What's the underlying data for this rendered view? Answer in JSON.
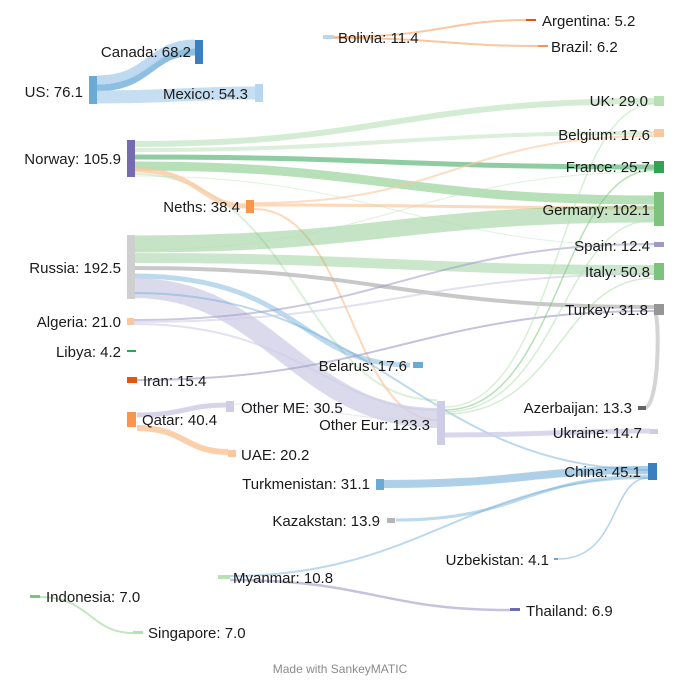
{
  "credit": "Made with SankeyMATIC",
  "colors": {
    "blue_dark": "#3a80c0",
    "blue": "#6aaad6",
    "blue_light": "#b8d6ee",
    "green_dark": "#31a354",
    "green": "#7cc47e",
    "green_light": "#b8e0b5",
    "orange_dark": "#e6550d",
    "orange": "#f9964b",
    "orange_light": "#fcc79c",
    "purple_dark": "#6f6ab5",
    "purple": "#9e9ac8",
    "purple_light": "#cfcde6",
    "gray_dark": "#636363",
    "gray": "#969696",
    "gray_light": "#cfcfcf"
  },
  "nodes": [
    {
      "id": "canada",
      "name": "Canada",
      "value": "68.2",
      "label": "Canada: 68.2"
    },
    {
      "id": "us",
      "name": "US",
      "value": "76.1",
      "label": "US: 76.1"
    },
    {
      "id": "mexico",
      "name": "Mexico",
      "value": "54.3",
      "label": "Mexico: 54.3"
    },
    {
      "id": "bolivia",
      "name": "Bolivia",
      "value": "11.4",
      "label": "Bolivia: 11.4"
    },
    {
      "id": "argentina",
      "name": "Argentina",
      "value": "5.2",
      "label": "Argentina: 5.2"
    },
    {
      "id": "brazil",
      "name": "Brazil",
      "value": "6.2",
      "label": "Brazil: 6.2"
    },
    {
      "id": "norway",
      "name": "Norway",
      "value": "105.9",
      "label": "Norway: 105.9"
    },
    {
      "id": "neths",
      "name": "Neths",
      "value": "38.4",
      "label": "Neths: 38.4"
    },
    {
      "id": "russia",
      "name": "Russia",
      "value": "192.5",
      "label": "Russia: 192.5"
    },
    {
      "id": "algeria",
      "name": "Algeria",
      "value": "21.0",
      "label": "Algeria: 21.0"
    },
    {
      "id": "libya",
      "name": "Libya",
      "value": "4.2",
      "label": "Libya: 4.2"
    },
    {
      "id": "iran",
      "name": "Iran",
      "value": "15.4",
      "label": "Iran: 15.4"
    },
    {
      "id": "qatar",
      "name": "Qatar",
      "value": "40.4",
      "label": "Qatar: 40.4"
    },
    {
      "id": "uae",
      "name": "UAE",
      "value": "20.2",
      "label": "UAE: 20.2"
    },
    {
      "id": "otherme",
      "name": "Other ME",
      "value": "30.5",
      "label": "Other ME: 30.5"
    },
    {
      "id": "belarus",
      "name": "Belarus",
      "value": "17.6",
      "label": "Belarus: 17.6"
    },
    {
      "id": "othereur",
      "name": "Other Eur",
      "value": "123.3",
      "label": "Other Eur: 123.3"
    },
    {
      "id": "turkmenistan",
      "name": "Turkmenistan",
      "value": "31.1",
      "label": "Turkmenistan: 31.1"
    },
    {
      "id": "kazakstan",
      "name": "Kazakstan",
      "value": "13.9",
      "label": "Kazakstan: 13.9"
    },
    {
      "id": "uzbekistan",
      "name": "Uzbekistan",
      "value": "4.1",
      "label": "Uzbekistan: 4.1"
    },
    {
      "id": "myanmar",
      "name": "Myanmar",
      "value": "10.8",
      "label": "Myanmar: 10.8"
    },
    {
      "id": "indonesia",
      "name": "Indonesia",
      "value": "7.0",
      "label": "Indonesia: 7.0"
    },
    {
      "id": "singapore",
      "name": "Singapore",
      "value": "7.0",
      "label": "Singapore: 7.0"
    },
    {
      "id": "thailand",
      "name": "Thailand",
      "value": "6.9",
      "label": "Thailand: 6.9"
    },
    {
      "id": "uk",
      "name": "UK",
      "value": "29.0",
      "label": "UK: 29.0"
    },
    {
      "id": "belgium",
      "name": "Belgium",
      "value": "17.6",
      "label": "Belgium: 17.6"
    },
    {
      "id": "france",
      "name": "France",
      "value": "25.7",
      "label": "France: 25.7"
    },
    {
      "id": "germany",
      "name": "Germany",
      "value": "102.1",
      "label": "Germany: 102.1"
    },
    {
      "id": "spain",
      "name": "Spain",
      "value": "12.4",
      "label": "Spain: 12.4"
    },
    {
      "id": "italy",
      "name": "Italy",
      "value": "50.8",
      "label": "Italy: 50.8"
    },
    {
      "id": "turkey",
      "name": "Turkey",
      "value": "31.8",
      "label": "Turkey: 31.8"
    },
    {
      "id": "azerbaijan",
      "name": "Azerbaijan",
      "value": "13.3",
      "label": "Azerbaijan: 13.3"
    },
    {
      "id": "ukraine",
      "name": "Ukraine",
      "value": "14.7",
      "label": "Ukraine: 14.7"
    },
    {
      "id": "china",
      "name": "China",
      "value": "45.1",
      "label": "China: 45.1"
    }
  ]
}
